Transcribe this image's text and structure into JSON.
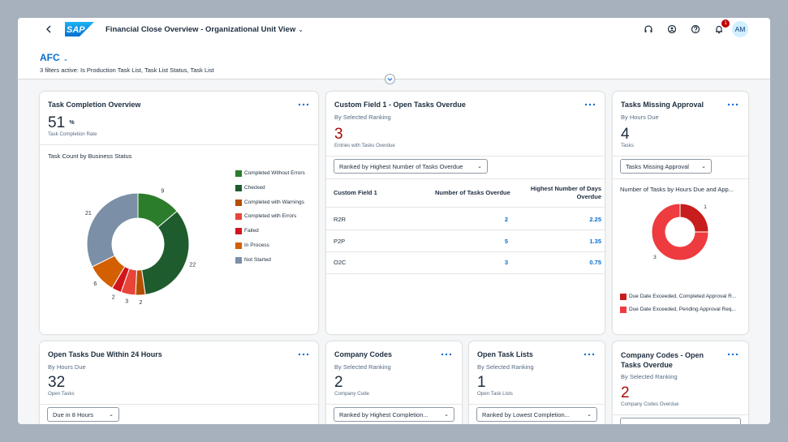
{
  "shell": {
    "back_icon": "chevron-left-icon",
    "logo_text": "SAP",
    "app_title": "Financial Close Overview - Organizational Unit View",
    "notification_count": "1",
    "avatar_initials": "AM"
  },
  "header": {
    "variant": "AFC",
    "filters_text": "3 filters active: Is Production Task List, Task List Status, Task List"
  },
  "cards": {
    "completion": {
      "title": "Task Completion Overview",
      "kpi": "51",
      "kpi_unit": "%",
      "kpi_label": "Task Completion Rate",
      "chart_title": "Task Count by Business Status"
    },
    "custom": {
      "title": "Custom Field 1 - Open Tasks Overdue",
      "subtitle": "By Selected Ranking",
      "kpi": "3",
      "kpi_label": "Entries with Tasks Overdue",
      "select": "Ranked by Highest Number of Tasks Overdue",
      "columns": [
        "Custom Field 1",
        "Number of Tasks Overdue",
        "Highest Number of Days",
        "Overdue"
      ],
      "rows": [
        {
          "name": "R2R",
          "tasks": "2",
          "days": "2.25"
        },
        {
          "name": "P2P",
          "tasks": "5",
          "days": "1.35"
        },
        {
          "name": "O2C",
          "tasks": "3",
          "days": "0.75"
        }
      ]
    },
    "missing": {
      "title": "Tasks Missing Approval",
      "subtitle": "By Hours Due",
      "kpi": "4",
      "kpi_label": "Tasks",
      "select": "Tasks Missing Approval",
      "chart_title": "Number of Tasks by Hours Due and App...",
      "legend": [
        "Due Date Exceeded, Completed Approval R...",
        "Due Date Exceeded, Pending Approval Req..."
      ]
    },
    "open24": {
      "title": "Open Tasks Due Within 24 Hours",
      "subtitle": "By Hours Due",
      "kpi": "32",
      "kpi_label": "Open Tasks",
      "select": "Due in 8 Hours"
    },
    "codes": {
      "title": "Company Codes",
      "subtitle": "By Selected Ranking",
      "kpi": "2",
      "kpi_label": "Company Code",
      "select": "Ranked by Highest Completion..."
    },
    "lists": {
      "title": "Open Task Lists",
      "subtitle": "By Selected Ranking",
      "kpi": "1",
      "kpi_label": "Open Task Lists",
      "select": "Ranked by Lowest Completion..."
    },
    "codes_overdue": {
      "title_line1": "Company Codes - Open",
      "title_line2": "Tasks Overdue",
      "subtitle": "By Selected Ranking",
      "kpi": "2",
      "kpi_label": "Company Codes Overdue"
    }
  },
  "chart_data": [
    {
      "type": "pie",
      "title": "Task Count by Business Status",
      "categories": [
        "Completed Without Errors",
        "Checked",
        "Completed with Warnings",
        "Completed with Errors",
        "Failed",
        "In Process",
        "Not Started"
      ],
      "values": [
        9,
        22,
        2,
        3,
        2,
        6,
        21
      ],
      "colors": [
        "#2b7d2b",
        "#1e5c2e",
        "#b44f00",
        "#e8443a",
        "#d2141c",
        "#d35f00",
        "#7b8fa6"
      ],
      "legend_position": "right"
    },
    {
      "type": "pie",
      "title": "Number of Tasks by Hours Due and App...",
      "categories": [
        "Due Date Exceeded, Completed Approval R...",
        "Due Date Exceeded, Pending Approval Req..."
      ],
      "values": [
        1,
        3
      ],
      "colors": [
        "#c81d1d",
        "#ee3b3f"
      ],
      "legend_position": "bottom"
    }
  ]
}
